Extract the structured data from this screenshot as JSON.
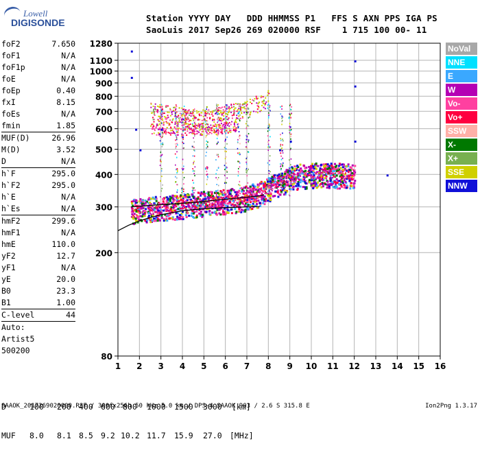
{
  "logo": {
    "line1": "Lowell",
    "line2": "DIGISONDE"
  },
  "header": {
    "row1": "Station YYYY DAY   DDD HHMMSS P1   FFS S AXN PPS IGA PS",
    "row2": "SaoLuis 2017 Sep26 269 020000 RSF    1 715 100 00- 11"
  },
  "params": {
    "group1": [
      {
        "key": "foF2",
        "value": "7.650"
      },
      {
        "key": "foF1",
        "value": "N/A"
      },
      {
        "key": "foF1p",
        "value": "N/A"
      },
      {
        "key": "foE",
        "value": "N/A"
      },
      {
        "key": "foEp",
        "value": "0.40"
      },
      {
        "key": "fxI",
        "value": "8.15"
      },
      {
        "key": "foEs",
        "value": "N/A"
      },
      {
        "key": "fmin",
        "value": "1.85"
      }
    ],
    "group2": [
      {
        "key": "MUF(D)",
        "value": "26.96"
      },
      {
        "key": "M(D)",
        "value": "3.52"
      },
      {
        "key": "D",
        "value": "N/A"
      }
    ],
    "group3": [
      {
        "key": "h`F",
        "value": "295.0"
      },
      {
        "key": "h`F2",
        "value": "295.0"
      },
      {
        "key": "h`E",
        "value": "N/A"
      },
      {
        "key": "h`Es",
        "value": "N/A"
      }
    ],
    "group4": [
      {
        "key": "hmF2",
        "value": "299.6"
      },
      {
        "key": "hmF1",
        "value": "N/A"
      },
      {
        "key": "hmE",
        "value": "110.0"
      },
      {
        "key": "yF2",
        "value": "12.7"
      },
      {
        "key": "yF1",
        "value": "N/A"
      },
      {
        "key": "yE",
        "value": "20.0"
      },
      {
        "key": "B0",
        "value": "23.3"
      },
      {
        "key": "B1",
        "value": "1.00"
      }
    ],
    "clevel": {
      "key": "C-level",
      "value": "44"
    },
    "auto": [
      "Auto:",
      "Artist5",
      "500200"
    ]
  },
  "legend": [
    {
      "label": "NoVal",
      "color": "#a8a8a8"
    },
    {
      "label": "NNE",
      "color": "#00e0ff"
    },
    {
      "label": "E",
      "color": "#3aa8ff"
    },
    {
      "label": "W",
      "color": "#b400b4"
    },
    {
      "label": "Vo-",
      "color": "#ff40a0"
    },
    {
      "label": "Vo+",
      "color": "#ff0040"
    },
    {
      "label": "SSW",
      "color": "#ffb0a8"
    },
    {
      "label": "X-",
      "color": "#007800"
    },
    {
      "label": "X+",
      "color": "#78b050"
    },
    {
      "label": "SSE",
      "color": "#d0d000"
    },
    {
      "label": "NNW",
      "color": "#1010d8"
    }
  ],
  "footer": {
    "d_label": "D",
    "d_values": [
      "100",
      "200",
      "400",
      "600",
      "800",
      "1000",
      "1500",
      "3000",
      "[km]"
    ],
    "muf_label": "MUF",
    "muf_values": [
      "8.0",
      "8.1",
      "8.5",
      "9.2",
      "10.2",
      "11.7",
      "15.9",
      "27.0",
      "[MHz]"
    ],
    "bottom_line": "SAAOK_2017269020000.RSF / 300fx256h 50 kHz 5.0 km / DPS-4 SAAOK 903 / 2.6 S 315.8 E",
    "version": "Ion2Png 1.3.17"
  },
  "chart_data": {
    "type": "scatter",
    "title": "",
    "xlabel": "",
    "ylabel": "",
    "xlim": [
      1,
      16
    ],
    "x_ticks": [
      1,
      2,
      3,
      4,
      5,
      6,
      7,
      8,
      9,
      10,
      11,
      12,
      13,
      14,
      15,
      16
    ],
    "ylim": [
      80,
      1280
    ],
    "y_ticks": [
      80,
      200,
      300,
      400,
      500,
      600,
      700,
      800,
      900,
      1000,
      1100,
      1280
    ],
    "y_scale": "log",
    "grid": true,
    "traces": [
      {
        "name": "o-trace",
        "points": [
          [
            1.6,
            290
          ],
          [
            2.0,
            293
          ],
          [
            2.5,
            296
          ],
          [
            3.0,
            300
          ],
          [
            3.5,
            302
          ],
          [
            4.0,
            305
          ],
          [
            4.5,
            308
          ],
          [
            5.0,
            312
          ],
          [
            5.5,
            315
          ],
          [
            6.0,
            318
          ],
          [
            6.5,
            322
          ],
          [
            7.0,
            328
          ],
          [
            7.5,
            338
          ],
          [
            8.0,
            355
          ],
          [
            8.5,
            372
          ],
          [
            9.0,
            388
          ],
          [
            9.5,
            398
          ],
          [
            10.0,
            400
          ],
          [
            10.5,
            402
          ],
          [
            11.0,
            400
          ],
          [
            11.5,
            400
          ],
          [
            12.0,
            400
          ]
        ]
      },
      {
        "name": "high-band",
        "points": [
          [
            2.5,
            700
          ],
          [
            3.0,
            690
          ],
          [
            3.5,
            680
          ],
          [
            4.0,
            670
          ],
          [
            4.5,
            660
          ],
          [
            5.0,
            660
          ],
          [
            5.5,
            670
          ],
          [
            6.0,
            690
          ],
          [
            6.5,
            700
          ],
          [
            7.0,
            720
          ],
          [
            7.5,
            750
          ],
          [
            8.0,
            790
          ]
        ]
      },
      {
        "name": "mid-band",
        "points": [
          [
            2.5,
            600
          ],
          [
            3.0,
            600
          ],
          [
            3.5,
            600
          ],
          [
            4.0,
            600
          ],
          [
            4.5,
            600
          ],
          [
            5.0,
            600
          ],
          [
            5.5,
            600
          ],
          [
            6.0,
            610
          ],
          [
            6.5,
            620
          ]
        ]
      },
      {
        "name": "scattered",
        "points": [
          [
            1.6,
            1200
          ],
          [
            1.6,
            950
          ],
          [
            12.0,
            1100
          ],
          [
            12.0,
            880
          ],
          [
            12.0,
            540
          ],
          [
            9.0,
            540
          ],
          [
            8.5,
            500
          ],
          [
            3.0,
            600
          ],
          [
            2.0,
            500
          ],
          [
            1.8,
            600
          ],
          [
            13.5,
            400
          ]
        ]
      }
    ],
    "profile_curve": [
      [
        1.0,
        243
      ],
      [
        1.5,
        255
      ],
      [
        2.0,
        265
      ],
      [
        2.5,
        273
      ],
      [
        3.0,
        280
      ],
      [
        4.0,
        290
      ],
      [
        5.0,
        295
      ],
      [
        6.0,
        298
      ],
      [
        7.0,
        300
      ],
      [
        7.6,
        301
      ]
    ],
    "profile_curve_upper": [
      [
        1.6,
        300
      ],
      [
        2.5,
        304
      ],
      [
        3.5,
        308
      ],
      [
        4.5,
        312
      ],
      [
        5.5,
        318
      ],
      [
        6.5,
        324
      ],
      [
        7.5,
        330
      ],
      [
        7.8,
        334
      ]
    ]
  }
}
